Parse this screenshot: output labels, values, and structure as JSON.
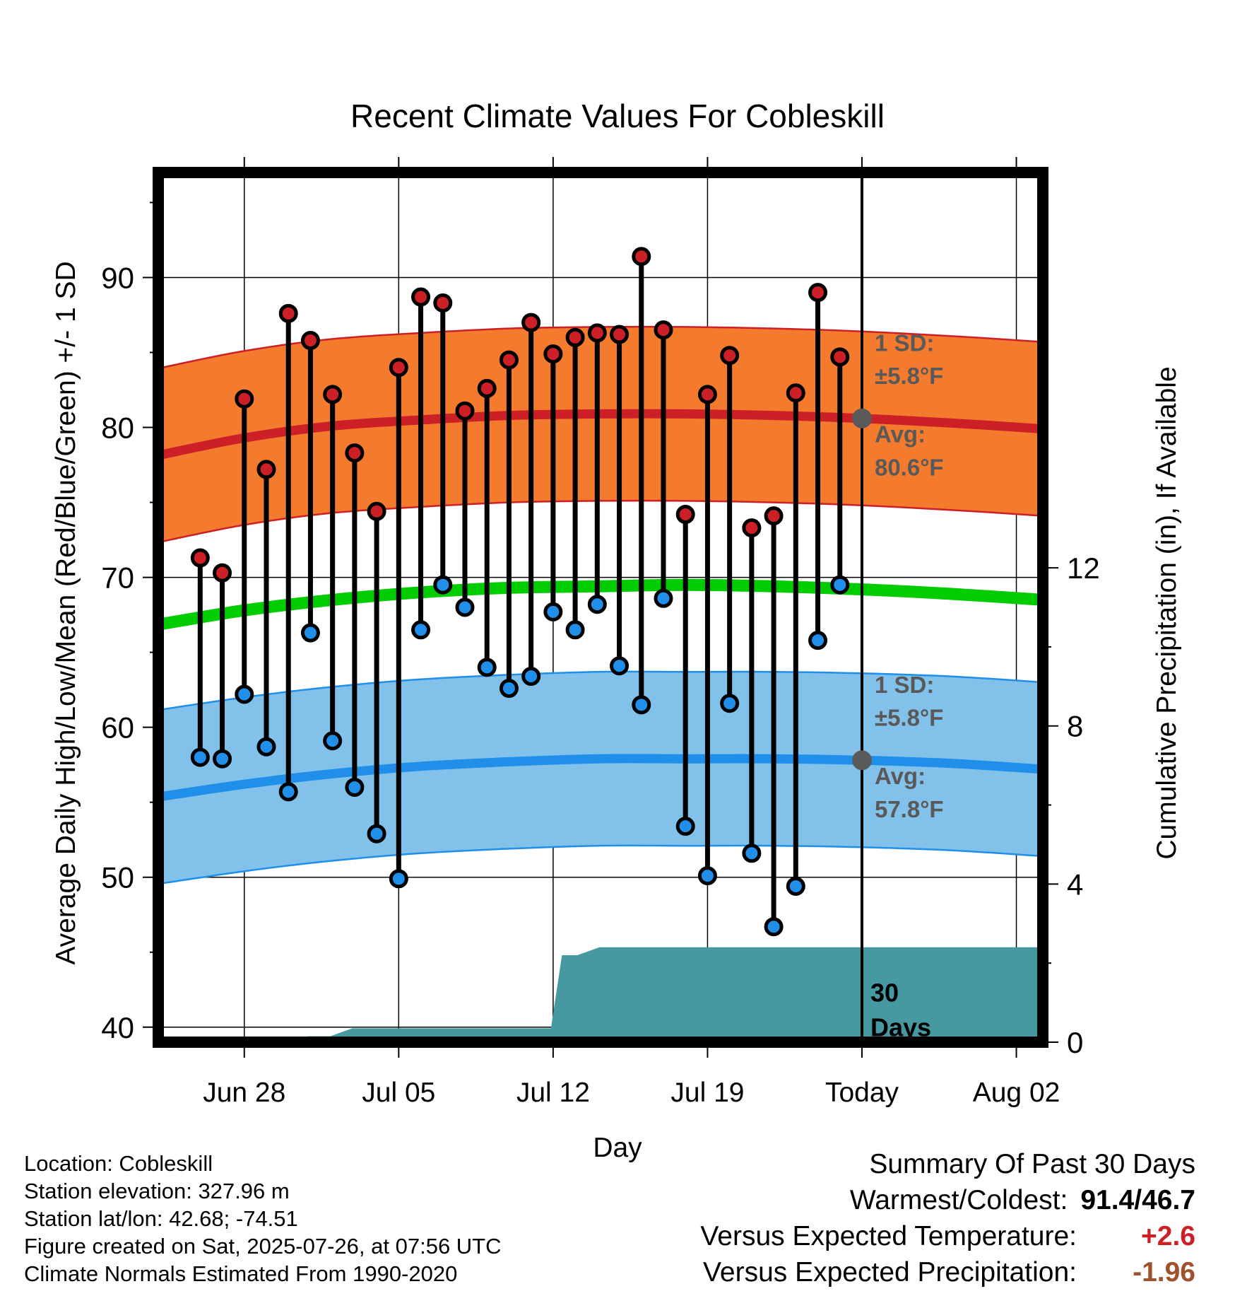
{
  "chart_data": {
    "type": "line",
    "title": "Recent Climate Values For Cobleskill",
    "xlabel": "Day",
    "ylabel_left": "Average Daily High/Low/Mean (Red/Blue/Green) +/- 1 SD",
    "ylabel_right": "Cumulative Precipitation (in), If Available",
    "y_left_range": [
      39,
      97
    ],
    "y_left_ticks": [
      40,
      50,
      60,
      70,
      80,
      90
    ],
    "y_right_range": [
      0,
      22
    ],
    "y_right_ticks": [
      0,
      4,
      8,
      12
    ],
    "x_range": [
      -3.9,
      36.2
    ],
    "x_ticks": [
      {
        "day": 0,
        "label": "Jun 28"
      },
      {
        "day": 7,
        "label": "Jul 05"
      },
      {
        "day": 14,
        "label": "Jul 12"
      },
      {
        "day": 21,
        "label": "Jul 19"
      },
      {
        "day": 28,
        "label": "Today"
      },
      {
        "day": 35,
        "label": "Aug 02"
      }
    ],
    "grid": true,
    "observed": {
      "days": [
        -2,
        -1,
        0,
        1,
        2,
        3,
        4,
        5,
        6,
        7,
        8,
        9,
        10,
        11,
        12,
        13,
        14,
        15,
        16,
        17,
        18,
        19,
        20,
        21,
        22,
        23,
        24,
        25,
        26,
        27
      ],
      "highs": [
        71.3,
        70.3,
        81.9,
        77.2,
        87.6,
        85.8,
        82.2,
        78.3,
        74.4,
        84.0,
        88.7,
        88.3,
        81.1,
        82.6,
        84.5,
        87.0,
        84.9,
        86.0,
        86.3,
        86.2,
        91.4,
        86.5,
        74.2,
        82.2,
        84.8,
        73.3,
        74.1,
        82.3,
        89.0,
        84.7
      ],
      "lows": [
        58.0,
        57.9,
        62.2,
        58.7,
        55.7,
        66.3,
        59.1,
        56.0,
        52.9,
        49.9,
        66.5,
        69.5,
        68.0,
        64.0,
        62.6,
        63.4,
        67.7,
        66.5,
        68.2,
        64.1,
        61.5,
        68.6,
        53.4,
        50.1,
        61.6,
        51.6,
        46.7,
        49.4,
        65.8,
        69.5
      ],
      "high_color": "#cc2026",
      "low_color": "#1f8fea"
    },
    "normals": {
      "days": [
        -3.7,
        0,
        4,
        8,
        12,
        16,
        20,
        24,
        28,
        32,
        36.2
      ],
      "high_avg": [
        78.2,
        79.3,
        80.1,
        80.5,
        80.8,
        80.9,
        80.9,
        80.8,
        80.6,
        80.3,
        79.9
      ],
      "high_sd": 5.8,
      "low_avg": [
        55.4,
        56.2,
        56.9,
        57.4,
        57.7,
        57.9,
        57.9,
        57.9,
        57.8,
        57.6,
        57.2
      ],
      "low_sd": 5.8,
      "mean_avg": [
        66.9,
        67.8,
        68.5,
        69.0,
        69.3,
        69.4,
        69.5,
        69.4,
        69.2,
        68.9,
        68.5
      ],
      "high_band_color": "#f47b2e",
      "high_line_color": "#cc2026",
      "low_band_color": "#82c2ea",
      "low_line_color": "#1f8fea",
      "mean_line_color": "#00cc00"
    },
    "precip_cumulative": {
      "days": [
        -3.7,
        -0.1,
        0.1,
        1.9,
        2.9,
        3.9,
        4.9,
        5.9,
        13.9,
        14.4,
        15.1,
        16.1,
        36.2
      ],
      "values": [
        0,
        0,
        0.05,
        0.05,
        0.15,
        0.15,
        0.35,
        0.35,
        0.35,
        2.2,
        2.2,
        2.4,
        2.4
      ],
      "color": "#4799a1"
    },
    "today_day": 28,
    "annotations": {
      "high_sd_title": "1 SD:",
      "high_sd_value": "±5.8°F",
      "high_avg_title": "Avg:",
      "high_avg_value": "80.6°F",
      "high_avg_point": 80.6,
      "low_sd_title": "1 SD:",
      "low_sd_value": "±5.8°F",
      "low_avg_title": "Avg:",
      "low_avg_value": "57.8°F",
      "low_avg_point": 57.8,
      "days_count": "30",
      "days_word": "Days",
      "annotation_color": "#595959"
    }
  },
  "meta": {
    "location": "Location: Cobleskill",
    "elevation": "Station elevation: 327.96 m",
    "latlon": "Station lat/lon: 42.68; -74.51",
    "created": "Figure created on Sat, 2025-07-26, at 07:56 UTC",
    "normals": "Climate Normals Estimated From 1990-2020"
  },
  "summary": {
    "title": "Summary Of Past 30 Days",
    "warm_cold_label": "Warmest/Coldest:",
    "warm_cold_value": "91.4/46.7",
    "temp_label": "Versus Expected Temperature:",
    "temp_value": "+2.6",
    "temp_color": "#cc2026",
    "precip_label": "Versus Expected Precipitation:",
    "precip_value": "-1.96",
    "precip_color": "#a0522d"
  }
}
